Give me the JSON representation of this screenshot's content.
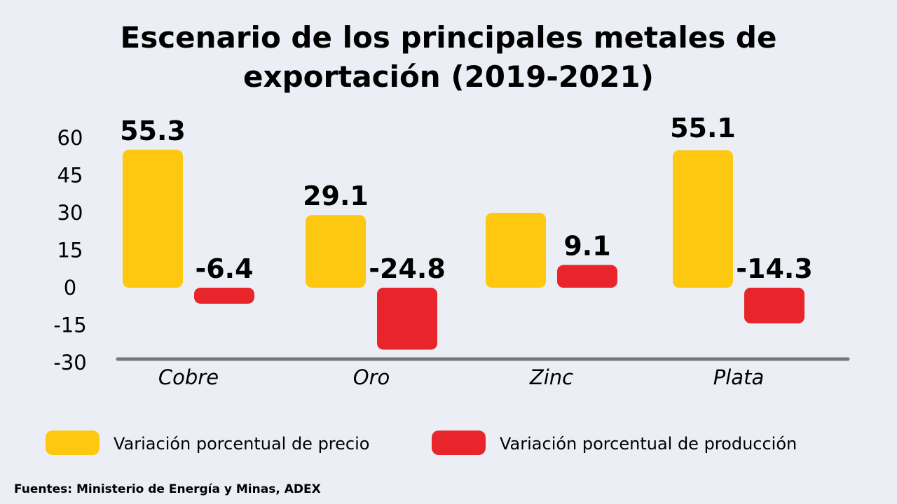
{
  "chart_data": {
    "type": "bar",
    "title_lines": [
      "Escenario de los principales metales de",
      "exportación (2019-2021)"
    ],
    "categories": [
      "Cobre",
      "Oro",
      "Zinc",
      "Plata"
    ],
    "series": [
      {
        "name": "Variación porcentual de precio",
        "color": "#fdc80f",
        "values": [
          55.3,
          29.1,
          30,
          55.1
        ],
        "labels": [
          "55.3",
          "29.1",
          "",
          "55.1"
        ]
      },
      {
        "name": "Variación porcentual de producción",
        "color": "#e8252a",
        "values": [
          -6.4,
          -24.8,
          9.1,
          -14.3
        ],
        "labels": [
          "-6.4",
          "-24.8",
          "9.1",
          "-14.3"
        ]
      }
    ],
    "yticks": [
      "60",
      "45",
      "30",
      "15",
      "0",
      "-15",
      "-30"
    ],
    "ylim": [
      -30,
      60
    ],
    "grid": false,
    "legend_position": "bottom"
  },
  "source": "Fuentes: Ministerio de Energía y Minas, ADEX"
}
